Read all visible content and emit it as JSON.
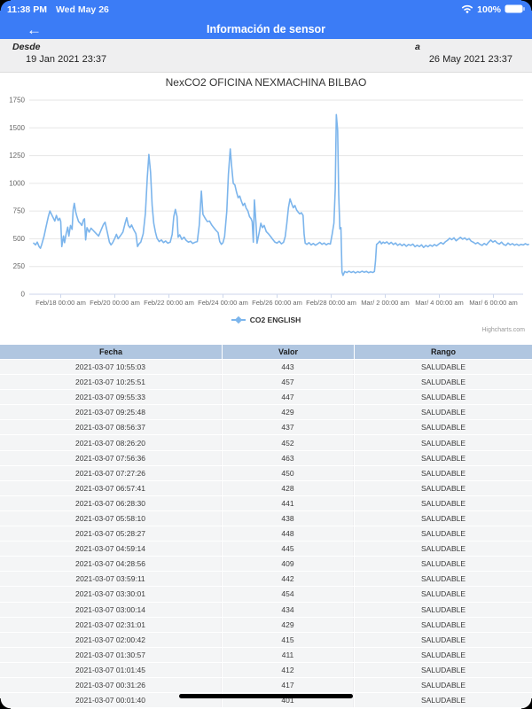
{
  "status_bar": {
    "time": "11:38 PM",
    "date": "Wed May 26",
    "battery_percent": "100%"
  },
  "nav": {
    "title": "Información de sensor",
    "back_icon": "←"
  },
  "filters": {
    "from_label": "Desde",
    "from_value": "19 Jan 2021 23:37",
    "to_label": "a",
    "to_value": "26 May 2021 23:37"
  },
  "colors": {
    "accent_blue": "#3b7cf6",
    "chart_line": "#7cb5ec",
    "grid_line": "#e6e6e6",
    "axis_line": "#ccd6eb",
    "axis_label": "#666666",
    "table_header_bg": "#b0c6e0",
    "table_row_bg": "#f4f5f6"
  },
  "chart_data": {
    "type": "line",
    "title": "NexCO2 OFICINA NEXMACHINA BILBAO",
    "xlabel": "",
    "ylabel": "",
    "ylim": [
      0,
      1750
    ],
    "yticks": [
      0,
      250,
      500,
      750,
      1000,
      1250,
      1500,
      1750
    ],
    "grid": "horizontal",
    "legend_position": "bottom",
    "credit": "Highcharts.com",
    "x_unit": "days since 2021-02-17 00:00",
    "xlim": [
      0,
      18.4
    ],
    "xticks": [
      {
        "d": 1,
        "label": "Feb/18 00:00 am"
      },
      {
        "d": 3,
        "label": "Feb/20 00:00 am"
      },
      {
        "d": 5,
        "label": "Feb/22 00:00 am"
      },
      {
        "d": 7,
        "label": "Feb/24 00:00 am"
      },
      {
        "d": 9,
        "label": "Feb/26 00:00 am"
      },
      {
        "d": 11,
        "label": "Feb/28 00:00 am"
      },
      {
        "d": 13,
        "label": "Mar/ 2 00:00 am"
      },
      {
        "d": 15,
        "label": "Mar/ 4 00:00 am"
      },
      {
        "d": 17,
        "label": "Mar/ 6 00:00 am"
      }
    ],
    "series": [
      {
        "name": "CO2 ENGLISH",
        "color": "#7cb5ec",
        "points": [
          [
            0,
            460
          ],
          [
            0.07,
            445
          ],
          [
            0.13,
            470
          ],
          [
            0.2,
            430
          ],
          [
            0.25,
            415
          ],
          [
            0.3,
            450
          ],
          [
            0.38,
            520
          ],
          [
            0.46,
            610
          ],
          [
            0.54,
            700
          ],
          [
            0.6,
            750
          ],
          [
            0.66,
            720
          ],
          [
            0.72,
            690
          ],
          [
            0.78,
            660
          ],
          [
            0.84,
            710
          ],
          [
            0.9,
            665
          ],
          [
            0.96,
            685
          ],
          [
            1,
            655
          ],
          [
            1.04,
            430
          ],
          [
            1.1,
            525
          ],
          [
            1.14,
            465
          ],
          [
            1.2,
            545
          ],
          [
            1.26,
            605
          ],
          [
            1.3,
            525
          ],
          [
            1.36,
            620
          ],
          [
            1.42,
            585
          ],
          [
            1.46,
            760
          ],
          [
            1.5,
            820
          ],
          [
            1.55,
            745
          ],
          [
            1.6,
            700
          ],
          [
            1.66,
            655
          ],
          [
            1.72,
            640
          ],
          [
            1.78,
            620
          ],
          [
            1.84,
            670
          ],
          [
            1.88,
            680
          ],
          [
            1.92,
            490
          ],
          [
            1.97,
            600
          ],
          [
            2.05,
            560
          ],
          [
            2.12,
            595
          ],
          [
            2.2,
            575
          ],
          [
            2.3,
            550
          ],
          [
            2.4,
            525
          ],
          [
            2.5,
            585
          ],
          [
            2.58,
            630
          ],
          [
            2.64,
            650
          ],
          [
            2.72,
            560
          ],
          [
            2.8,
            470
          ],
          [
            2.86,
            445
          ],
          [
            2.92,
            465
          ],
          [
            3,
            505
          ],
          [
            3.06,
            540
          ],
          [
            3.12,
            500
          ],
          [
            3.2,
            525
          ],
          [
            3.3,
            560
          ],
          [
            3.38,
            640
          ],
          [
            3.44,
            690
          ],
          [
            3.5,
            620
          ],
          [
            3.56,
            600
          ],
          [
            3.62,
            625
          ],
          [
            3.7,
            580
          ],
          [
            3.78,
            545
          ],
          [
            3.84,
            430
          ],
          [
            3.9,
            455
          ],
          [
            3.96,
            470
          ],
          [
            4.05,
            545
          ],
          [
            4.13,
            730
          ],
          [
            4.2,
            1050
          ],
          [
            4.26,
            1260
          ],
          [
            4.32,
            1100
          ],
          [
            4.38,
            800
          ],
          [
            4.44,
            640
          ],
          [
            4.5,
            560
          ],
          [
            4.56,
            505
          ],
          [
            4.64,
            475
          ],
          [
            4.72,
            490
          ],
          [
            4.8,
            465
          ],
          [
            4.88,
            480
          ],
          [
            4.96,
            460
          ],
          [
            5.05,
            470
          ],
          [
            5.12,
            540
          ],
          [
            5.18,
            700
          ],
          [
            5.24,
            765
          ],
          [
            5.3,
            700
          ],
          [
            5.34,
            515
          ],
          [
            5.4,
            535
          ],
          [
            5.48,
            495
          ],
          [
            5.56,
            515
          ],
          [
            5.64,
            485
          ],
          [
            5.72,
            470
          ],
          [
            5.8,
            478
          ],
          [
            5.88,
            458
          ],
          [
            5.96,
            468
          ],
          [
            6.05,
            475
          ],
          [
            6.12,
            620
          ],
          [
            6.2,
            930
          ],
          [
            6.26,
            720
          ],
          [
            6.34,
            685
          ],
          [
            6.42,
            655
          ],
          [
            6.5,
            660
          ],
          [
            6.58,
            625
          ],
          [
            6.66,
            600
          ],
          [
            6.74,
            575
          ],
          [
            6.82,
            555
          ],
          [
            6.88,
            475
          ],
          [
            6.94,
            450
          ],
          [
            7,
            465
          ],
          [
            7.06,
            520
          ],
          [
            7.14,
            750
          ],
          [
            7.2,
            1080
          ],
          [
            7.27,
            1310
          ],
          [
            7.32,
            1150
          ],
          [
            7.38,
            1000
          ],
          [
            7.44,
            985
          ],
          [
            7.5,
            920
          ],
          [
            7.56,
            870
          ],
          [
            7.62,
            885
          ],
          [
            7.68,
            840
          ],
          [
            7.74,
            800
          ],
          [
            7.8,
            820
          ],
          [
            7.86,
            775
          ],
          [
            7.92,
            750
          ],
          [
            7.98,
            700
          ],
          [
            8.04,
            680
          ],
          [
            8.08,
            655
          ],
          [
            8.12,
            470
          ],
          [
            8.16,
            850
          ],
          [
            8.22,
            640
          ],
          [
            8.26,
            460
          ],
          [
            8.34,
            560
          ],
          [
            8.4,
            640
          ],
          [
            8.46,
            600
          ],
          [
            8.52,
            620
          ],
          [
            8.6,
            565
          ],
          [
            8.68,
            545
          ],
          [
            8.76,
            520
          ],
          [
            8.84,
            495
          ],
          [
            8.92,
            470
          ],
          [
            9,
            462
          ],
          [
            9.08,
            478
          ],
          [
            9.16,
            455
          ],
          [
            9.24,
            468
          ],
          [
            9.3,
            520
          ],
          [
            9.36,
            640
          ],
          [
            9.42,
            780
          ],
          [
            9.48,
            860
          ],
          [
            9.54,
            815
          ],
          [
            9.6,
            780
          ],
          [
            9.66,
            800
          ],
          [
            9.72,
            760
          ],
          [
            9.78,
            740
          ],
          [
            9.84,
            725
          ],
          [
            9.9,
            735
          ],
          [
            9.96,
            710
          ],
          [
            10,
            540
          ],
          [
            10.04,
            460
          ],
          [
            10.1,
            450
          ],
          [
            10.18,
            465
          ],
          [
            10.26,
            445
          ],
          [
            10.34,
            458
          ],
          [
            10.42,
            442
          ],
          [
            10.5,
            455
          ],
          [
            10.58,
            468
          ],
          [
            10.66,
            450
          ],
          [
            10.74,
            462
          ],
          [
            10.82,
            446
          ],
          [
            10.9,
            458
          ],
          [
            10.97,
            452
          ],
          [
            11.04,
            545
          ],
          [
            11.1,
            640
          ],
          [
            11.15,
            950
          ],
          [
            11.19,
            1620
          ],
          [
            11.24,
            1480
          ],
          [
            11.28,
            900
          ],
          [
            11.32,
            590
          ],
          [
            11.36,
            600
          ],
          [
            11.4,
            200
          ],
          [
            11.44,
            170
          ],
          [
            11.5,
            205
          ],
          [
            11.58,
            195
          ],
          [
            11.66,
            208
          ],
          [
            11.74,
            196
          ],
          [
            11.82,
            205
          ],
          [
            11.9,
            192
          ],
          [
            11.98,
            204
          ],
          [
            12.06,
            196
          ],
          [
            12.14,
            208
          ],
          [
            12.22,
            198
          ],
          [
            12.3,
            206
          ],
          [
            12.38,
            194
          ],
          [
            12.46,
            202
          ],
          [
            12.54,
            196
          ],
          [
            12.6,
            205
          ],
          [
            12.64,
            300
          ],
          [
            12.68,
            450
          ],
          [
            12.74,
            462
          ],
          [
            12.8,
            478
          ],
          [
            12.86,
            455
          ],
          [
            12.92,
            470
          ],
          [
            12.98,
            460
          ],
          [
            13.06,
            472
          ],
          [
            13.14,
            452
          ],
          [
            13.22,
            468
          ],
          [
            13.3,
            448
          ],
          [
            13.38,
            462
          ],
          [
            13.46,
            440
          ],
          [
            13.54,
            455
          ],
          [
            13.62,
            438
          ],
          [
            13.7,
            452
          ],
          [
            13.78,
            432
          ],
          [
            13.86,
            448
          ],
          [
            13.94,
            440
          ],
          [
            14.02,
            452
          ],
          [
            14.1,
            428
          ],
          [
            14.18,
            442
          ],
          [
            14.26,
            430
          ],
          [
            14.34,
            446
          ],
          [
            14.42,
            422
          ],
          [
            14.5,
            440
          ],
          [
            14.58,
            428
          ],
          [
            14.66,
            444
          ],
          [
            14.74,
            432
          ],
          [
            14.82,
            448
          ],
          [
            14.9,
            436
          ],
          [
            14.98,
            452
          ],
          [
            15.06,
            466
          ],
          [
            15.14,
            452
          ],
          [
            15.22,
            472
          ],
          [
            15.3,
            486
          ],
          [
            15.38,
            505
          ],
          [
            15.46,
            492
          ],
          [
            15.54,
            508
          ],
          [
            15.62,
            482
          ],
          [
            15.7,
            498
          ],
          [
            15.78,
            514
          ],
          [
            15.86,
            496
          ],
          [
            15.94,
            508
          ],
          [
            16.02,
            490
          ],
          [
            16.1,
            502
          ],
          [
            16.18,
            478
          ],
          [
            16.26,
            468
          ],
          [
            16.34,
            455
          ],
          [
            16.42,
            466
          ],
          [
            16.5,
            450
          ],
          [
            16.58,
            440
          ],
          [
            16.66,
            458
          ],
          [
            16.74,
            444
          ],
          [
            16.82,
            468
          ],
          [
            16.9,
            488
          ],
          [
            16.98,
            470
          ],
          [
            17.06,
            482
          ],
          [
            17.14,
            462
          ],
          [
            17.22,
            452
          ],
          [
            17.3,
            470
          ],
          [
            17.38,
            448
          ],
          [
            17.46,
            440
          ],
          [
            17.54,
            462
          ],
          [
            17.62,
            446
          ],
          [
            17.7,
            456
          ],
          [
            17.78,
            442
          ],
          [
            17.86,
            452
          ],
          [
            17.94,
            440
          ],
          [
            18.02,
            450
          ],
          [
            18.1,
            444
          ],
          [
            18.18,
            456
          ],
          [
            18.26,
            446
          ],
          [
            18.3,
            450
          ]
        ]
      }
    ]
  },
  "table": {
    "columns": [
      "Fecha",
      "Valor",
      "Rango"
    ],
    "rows": [
      [
        "2021-03-07 10:55:03",
        "443",
        "SALUDABLE"
      ],
      [
        "2021-03-07 10:25:51",
        "457",
        "SALUDABLE"
      ],
      [
        "2021-03-07 09:55:33",
        "447",
        "SALUDABLE"
      ],
      [
        "2021-03-07 09:25:48",
        "429",
        "SALUDABLE"
      ],
      [
        "2021-03-07 08:56:37",
        "437",
        "SALUDABLE"
      ],
      [
        "2021-03-07 08:26:20",
        "452",
        "SALUDABLE"
      ],
      [
        "2021-03-07 07:56:36",
        "463",
        "SALUDABLE"
      ],
      [
        "2021-03-07 07:27:26",
        "450",
        "SALUDABLE"
      ],
      [
        "2021-03-07 06:57:41",
        "428",
        "SALUDABLE"
      ],
      [
        "2021-03-07 06:28:30",
        "441",
        "SALUDABLE"
      ],
      [
        "2021-03-07 05:58:10",
        "438",
        "SALUDABLE"
      ],
      [
        "2021-03-07 05:28:27",
        "448",
        "SALUDABLE"
      ],
      [
        "2021-03-07 04:59:14",
        "445",
        "SALUDABLE"
      ],
      [
        "2021-03-07 04:28:56",
        "409",
        "SALUDABLE"
      ],
      [
        "2021-03-07 03:59:11",
        "442",
        "SALUDABLE"
      ],
      [
        "2021-03-07 03:30:01",
        "454",
        "SALUDABLE"
      ],
      [
        "2021-03-07 03:00:14",
        "434",
        "SALUDABLE"
      ],
      [
        "2021-03-07 02:31:01",
        "429",
        "SALUDABLE"
      ],
      [
        "2021-03-07 02:00:42",
        "415",
        "SALUDABLE"
      ],
      [
        "2021-03-07 01:30:57",
        "411",
        "SALUDABLE"
      ],
      [
        "2021-03-07 01:01:45",
        "412",
        "SALUDABLE"
      ],
      [
        "2021-03-07 00:31:26",
        "417",
        "SALUDABLE"
      ],
      [
        "2021-03-07 00:01:40",
        "401",
        "SALUDABLE"
      ]
    ]
  }
}
